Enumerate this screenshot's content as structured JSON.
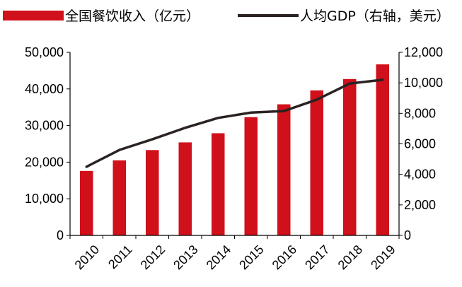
{
  "colors": {
    "bar": "#d0101a",
    "line": "#2b2222",
    "axis": "#000000"
  },
  "legend": {
    "bar_label": "全国餐饮收入（亿元）",
    "line_label": "人均GDP（右轴，美元）"
  },
  "chart_data": {
    "type": "bar",
    "categories": [
      "2010",
      "2011",
      "2012",
      "2013",
      "2014",
      "2015",
      "2016",
      "2017",
      "2018",
      "2019"
    ],
    "series": [
      {
        "name": "全国餐饮收入（亿元）",
        "type": "bar",
        "axis": "left",
        "values": [
          17600,
          20500,
          23300,
          25400,
          27900,
          32300,
          35800,
          39600,
          42700,
          46700
        ]
      },
      {
        "name": "人均GDP（右轴，美元）",
        "type": "line",
        "axis": "right",
        "values": [
          4500,
          5600,
          6300,
          7050,
          7700,
          8050,
          8150,
          8900,
          9950,
          10200
        ]
      }
    ],
    "ylim_left": [
      0,
      50000
    ],
    "ylim_right": [
      0,
      12000
    ],
    "yticks_left": [
      "0",
      "10,000",
      "20,000",
      "30,000",
      "40,000",
      "50,000"
    ],
    "yticks_right": [
      "0",
      "2,000",
      "4,000",
      "6,000",
      "8,000",
      "10,000",
      "12,000"
    ],
    "grid": false,
    "legend_position": "top"
  }
}
